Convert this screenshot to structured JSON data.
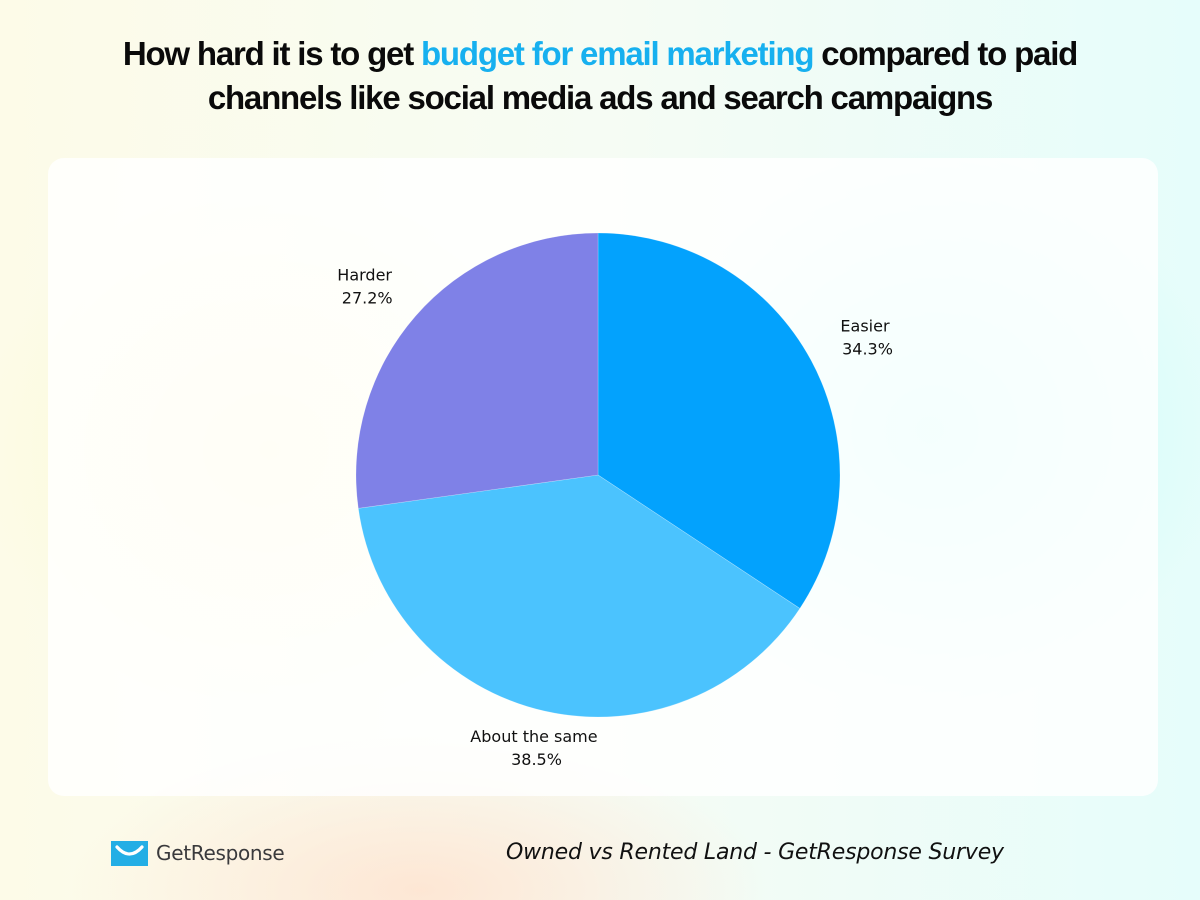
{
  "title": {
    "part1": "How hard it is to get ",
    "highlight": "budget for email marketing",
    "part2": " compared to paid",
    "line2": "channels like social media ads and search campaigns",
    "highlight_color": "#17b0ef"
  },
  "chart_data": {
    "type": "pie",
    "title": "How hard it is to get budget for email marketing compared to paid channels like social media ads and search campaigns",
    "start_angle_deg": 0,
    "direction": "clockwise",
    "slices": [
      {
        "label": "Easier",
        "value": 34.3,
        "value_label": "34.3%",
        "color": "#03a2fd"
      },
      {
        "label": "About the same",
        "value": 38.5,
        "value_label": "38.5%",
        "color": "#4bc3fe"
      },
      {
        "label": "Harder",
        "value": 27.2,
        "value_label": "27.2%",
        "color": "#7f81e7"
      }
    ]
  },
  "footer": {
    "logo_text": "GetResponse",
    "logo_icon": "envelope-smile-icon",
    "source": "Owned vs Rented Land - GetResponse Survey"
  }
}
